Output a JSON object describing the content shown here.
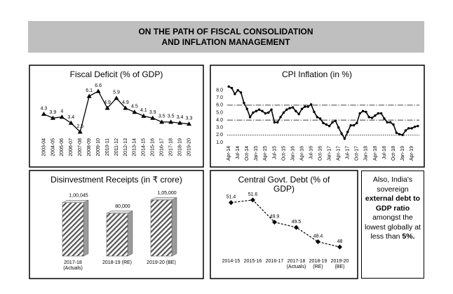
{
  "header": {
    "title_lines": [
      "ON THE PATH OF FISCAL CONSOLIDATION",
      "AND INFLATION MANAGEMENT"
    ]
  },
  "chart_data": [
    {
      "type": "line",
      "title": "Fiscal Deficit (% of GDP)",
      "categories": [
        "2003-04",
        "2004-05",
        "2005-06",
        "2006-07",
        "2007-08",
        "2008-09",
        "2009-10",
        "2010-11",
        "2011-12",
        "2012-13",
        "2013-14",
        "2014-15",
        "2015-16",
        "2016-17",
        "2017-18",
        "2018-19",
        "2019-20"
      ],
      "values": [
        4.3,
        3.9,
        4,
        3.4,
        2.5,
        6.1,
        6.6,
        4.9,
        5.9,
        4.9,
        4.5,
        4.1,
        3.9,
        3.5,
        3.5,
        3.4,
        3.3
      ],
      "color": "#000000",
      "marker": "triangle"
    },
    {
      "type": "line",
      "title": "CPI Inflation (in %)",
      "categories": [
        "Apr-14",
        null,
        null,
        "Jul-14",
        null,
        null,
        "Oct-14",
        null,
        null,
        "Jan-15",
        null,
        null,
        "Apr-15",
        null,
        null,
        "Jul-15",
        null,
        null,
        "Oct-15",
        null,
        null,
        "Jan-16",
        null,
        null,
        "Apr-16",
        null,
        null,
        "Jul-16",
        null,
        null,
        "Oct-16",
        null,
        null,
        "Jan-17",
        null,
        null,
        "Apr-17",
        null,
        null,
        "Jul-17",
        null,
        null,
        "Oct-17",
        null,
        null,
        "Jan-18",
        null,
        null,
        "Apr-18",
        null,
        null,
        "Jul-18",
        null,
        null,
        "Oct-18",
        null,
        null,
        "Jan-19",
        null,
        null,
        "Apr-19",
        null,
        null
      ],
      "values": [
        8.5,
        8.3,
        7.5,
        8.0,
        7.7,
        6.3,
        5.5,
        4.4,
        5.0,
        5.2,
        5.4,
        5.2,
        4.9,
        5.0,
        5.4,
        3.7,
        3.7,
        4.4,
        5.0,
        5.4,
        5.6,
        5.7,
        5.2,
        4.8,
        5.5,
        5.8,
        5.8,
        6.1,
        5.1,
        4.4,
        4.2,
        3.6,
        3.4,
        3.2,
        3.7,
        3.9,
        3.0,
        2.2,
        1.5,
        2.4,
        3.3,
        3.3,
        3.6,
        4.9,
        5.2,
        5.1,
        4.4,
        4.3,
        4.6,
        4.9,
        4.9,
        4.2,
        3.7,
        3.7,
        3.4,
        2.3,
        2.1,
        2.0,
        2.6,
        2.9,
        2.9,
        3.1,
        3.2
      ],
      "color": "#000000",
      "marker": "circle",
      "ylim": [
        1,
        9
      ],
      "yticks": [
        {
          "value": 1,
          "label": "1.0"
        },
        {
          "value": 2,
          "label": "2.0"
        },
        {
          "value": 3,
          "label": "3.0"
        },
        {
          "value": 4,
          "label": "4.0"
        },
        {
          "value": 5,
          "label": "5.0"
        },
        {
          "value": 6,
          "label": "6.0"
        },
        {
          "value": 7,
          "label": "7.0"
        },
        {
          "value": 8,
          "label": "8.0"
        }
      ],
      "reference_lines": [
        {
          "value": 6,
          "style": "dash-dot"
        },
        {
          "value": 4,
          "style": "dash-dot"
        },
        {
          "value": 2,
          "style": "dotted"
        }
      ]
    },
    {
      "type": "bar",
      "title": "Disinvestment Receipts (in ₹ crore)",
      "categories": [
        "2017-18 (Actuals)",
        "2018-19 (RE)",
        "2019-20 (BE)"
      ],
      "values": [
        100045,
        80000,
        105000
      ],
      "value_labels": [
        "1,00,045",
        "80,000",
        "1,05,000"
      ],
      "color": "#808080"
    },
    {
      "type": "line",
      "title": "Central Govt. Debt (% of GDP)",
      "categories": [
        "2014-15",
        "2015-16",
        "2016-17",
        "2017-18 (Actuals)",
        "2018-19 (RE)",
        "2019-20 (BE)"
      ],
      "values": [
        51.4,
        51.6,
        49.9,
        49.5,
        48.4,
        48
      ],
      "color": "#000000",
      "marker": "diamond",
      "line_style": "dashed"
    }
  ],
  "note": {
    "parts": [
      "Also, India's sovereign ",
      "external debt to GDP ratio",
      " amongst the lowest globally at less than ",
      "5%."
    ]
  }
}
